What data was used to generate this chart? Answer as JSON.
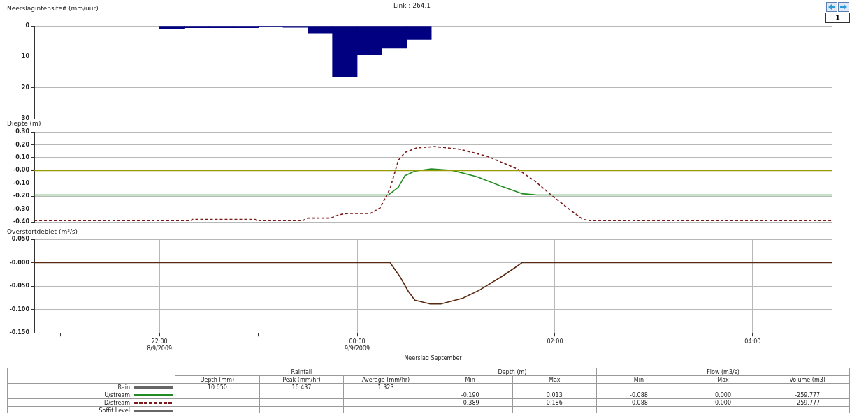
{
  "chart_data": [
    {
      "type": "histogram",
      "title": "Link : 264.1",
      "annotations": [
        "1"
      ],
      "ylabel": "Neerslagintensiteit (mm/uur)",
      "color": "#000080",
      "bins": [
        "2009-09-08T22:00",
        "2009-09-08T22:15",
        "2009-09-08T22:30",
        "2009-09-08T22:45",
        "2009-09-08T23:00",
        "2009-09-08T23:15",
        "2009-09-08T23:30",
        "2009-09-08T23:45",
        "2009-09-09T00:00",
        "2009-09-09T00:15",
        "2009-09-09T00:30",
        "2009-09-09T00:45"
      ],
      "values": [
        0.8,
        0.6,
        0.6,
        0.6,
        0.2,
        0.5,
        2.5,
        16.4,
        9.4,
        7.2,
        4.4
      ],
      "xlim": [
        "2009-09-08T20:44",
        "2009-09-09T04:48"
      ],
      "xticks": [
        {
          "value": "2009-09-08T22:00",
          "label": null
        },
        {
          "value": "2009-09-09T00:00",
          "label": null
        },
        {
          "value": "2009-09-09T02:00",
          "label": null
        },
        {
          "value": "2009-09-09T04:00",
          "label": null
        }
      ],
      "ylim": [
        30,
        0
      ],
      "yticks": [
        0,
        10,
        20,
        30
      ],
      "grid": true,
      "tick_labels": "y"
    },
    {
      "type": "line",
      "ylabel": "Diepte (m)",
      "series": [
        {
          "color": "#999900",
          "x": [
            "2009-09-08T20:44",
            "2009-09-09T04:48"
          ],
          "values": [
            0,
            0
          ]
        },
        {
          "color": "#228b22",
          "x": [
            "2009-09-08T20:44",
            "2009-09-09T00:19",
            "2009-09-09T00:25",
            "2009-09-09T00:29",
            "2009-09-09T00:35",
            "2009-09-09T00:45",
            "2009-09-09T00:58",
            "2009-09-09T01:13",
            "2009-09-09T01:27",
            "2009-09-09T01:40",
            "2009-09-09T01:49",
            "2009-09-09T04:48"
          ],
          "values": [
            -0.19,
            -0.19,
            -0.13,
            -0.04,
            -0.005,
            0.013,
            0,
            -0.05,
            -0.12,
            -0.18,
            -0.19,
            -0.19
          ]
        },
        {
          "color": "#7b1a1a",
          "line_style": "dashed",
          "x": [
            "2009-09-08T20:44",
            "2009-09-08T22:19",
            "2009-09-08T22:20",
            "2009-09-08T22:58",
            "2009-09-08T22:59",
            "2009-09-08T23:27",
            "2009-09-08T23:30",
            "2009-09-08T23:44",
            "2009-09-08T23:49",
            "2009-09-08T23:55",
            "2009-09-09T00:08",
            "2009-09-09T00:14",
            "2009-09-09T00:20",
            "2009-09-09T00:25",
            "2009-09-09T00:29",
            "2009-09-09T00:36",
            "2009-09-09T00:47",
            "2009-09-09T01:02",
            "2009-09-09T01:19",
            "2009-09-09T01:37",
            "2009-09-09T01:48",
            "2009-09-09T01:58",
            "2009-09-09T02:10",
            "2009-09-09T02:17",
            "2009-09-09T02:21",
            "2009-09-09T04:48"
          ],
          "values": [
            -0.389,
            -0.389,
            -0.38,
            -0.38,
            -0.389,
            -0.389,
            -0.37,
            -0.37,
            -0.343,
            -0.333,
            -0.333,
            -0.29,
            -0.14,
            0.08,
            0.14,
            0.175,
            0.186,
            0.166,
            0.11,
            0.013,
            -0.084,
            -0.193,
            -0.314,
            -0.38,
            -0.389,
            -0.389
          ]
        }
      ],
      "xlim": [
        "2009-09-08T20:44",
        "2009-09-09T04:48"
      ],
      "xticks": [
        {
          "value": "2009-09-08T22:00",
          "label": null
        },
        {
          "value": "2009-09-09T00:00",
          "label": null
        },
        {
          "value": "2009-09-09T02:00",
          "label": null
        },
        {
          "value": "2009-09-09T04:00",
          "label": null
        }
      ],
      "ylim": [
        -0.4,
        0.3
      ],
      "yticks": [
        {
          "value": -0.4,
          "label": "-0.40"
        },
        {
          "value": -0.3,
          "label": "-0.30"
        },
        {
          "value": -0.2,
          "label": "-0.20"
        },
        {
          "value": -0.1,
          "label": "-0.10"
        },
        {
          "value": 0,
          "label": "-0.00"
        },
        {
          "value": 0.1,
          "label": "0.10"
        },
        {
          "value": 0.2,
          "label": "0.20"
        },
        {
          "value": 0.3,
          "label": "0.30"
        }
      ],
      "grid": true,
      "tick_labels": "y"
    },
    {
      "type": "line",
      "ylabel": "Overstortdebiet (m³/s)",
      "xlabel": "Neerslag September",
      "series": [
        {
          "color": "#5a2a10",
          "x": [
            "2009-09-08T20:44",
            "2009-09-09T00:20",
            "2009-09-09T00:26",
            "2009-09-09T00:31",
            "2009-09-09T00:35",
            "2009-09-09T00:44",
            "2009-09-09T00:51",
            "2009-09-09T01:04",
            "2009-09-09T01:14",
            "2009-09-09T01:28",
            "2009-09-09T01:36",
            "2009-09-09T01:40",
            "2009-09-09T04:48"
          ],
          "values": [
            0,
            0,
            -0.03,
            -0.061,
            -0.08,
            -0.088,
            -0.088,
            -0.076,
            -0.059,
            -0.029,
            -0.01,
            0,
            0
          ]
        }
      ],
      "xlim": [
        "2009-09-08T20:44",
        "2009-09-09T04:48"
      ],
      "xticks": [
        {
          "value": "2009-09-08T21:00",
          "label": null
        },
        {
          "value": "2009-09-08T22:00",
          "label": "22:00\n8/9/2009"
        },
        {
          "value": "2009-09-08T23:00",
          "label": null
        },
        {
          "value": "2009-09-09T00:00",
          "label": "00:00\n9/9/2009"
        },
        {
          "value": "2009-09-09T01:00",
          "label": null
        },
        {
          "value": "2009-09-09T02:00",
          "label": "02:00"
        },
        {
          "value": "2009-09-09T03:00",
          "label": null
        },
        {
          "value": "2009-09-09T04:00",
          "label": "04:00"
        }
      ],
      "ylim": [
        -0.15,
        0.05
      ],
      "yticks": [
        {
          "value": -0.15,
          "label": "-0.150"
        },
        {
          "value": -0.1,
          "label": "-0.100"
        },
        {
          "value": -0.05,
          "label": "-0.050"
        },
        {
          "value": 0,
          "label": "-0.000"
        },
        {
          "value": 0.05,
          "label": "0.050"
        }
      ],
      "grid": true
    },
    {
      "type": "other",
      "annotations": [
        "Rainfall",
        "Depth (m)",
        "Flow (m3/s)"
      ],
      "categories": [
        "Depth (mm)",
        "Peak (mm/hr)",
        "Average (mm/hr)",
        "Min",
        "Max",
        "Min",
        "Max",
        "Volume (m3)"
      ],
      "series": [
        {
          "name": "Rain",
          "color": "#666666",
          "values": [
            10.65,
            16.437,
            1.323,
            null,
            null,
            null,
            null,
            null
          ],
          "value_labels": [
            "10.650",
            "16.437",
            "1.323",
            null,
            null,
            null,
            null,
            null
          ]
        },
        {
          "name": "U/stream",
          "color": "#228b22",
          "values": [
            null,
            null,
            null,
            -0.19,
            0.013,
            -0.088,
            0,
            -259.777
          ],
          "value_labels": [
            null,
            null,
            null,
            "-0.190",
            "0.013",
            "-0.088",
            "0.000",
            "-259.777"
          ]
        },
        {
          "name": "D/stream",
          "color": "#7b1a1a",
          "line_style": "dashed",
          "values": [
            null,
            null,
            null,
            -0.389,
            0.186,
            -0.088,
            0,
            -259.777
          ],
          "value_labels": [
            null,
            null,
            null,
            "-0.389",
            "0.186",
            "-0.088",
            "0.000",
            "-259.777"
          ]
        },
        {
          "name": "Soffit Level",
          "color": "#666666",
          "values": [
            null,
            null,
            null,
            null,
            null,
            null,
            null,
            null
          ]
        }
      ]
    }
  ]
}
